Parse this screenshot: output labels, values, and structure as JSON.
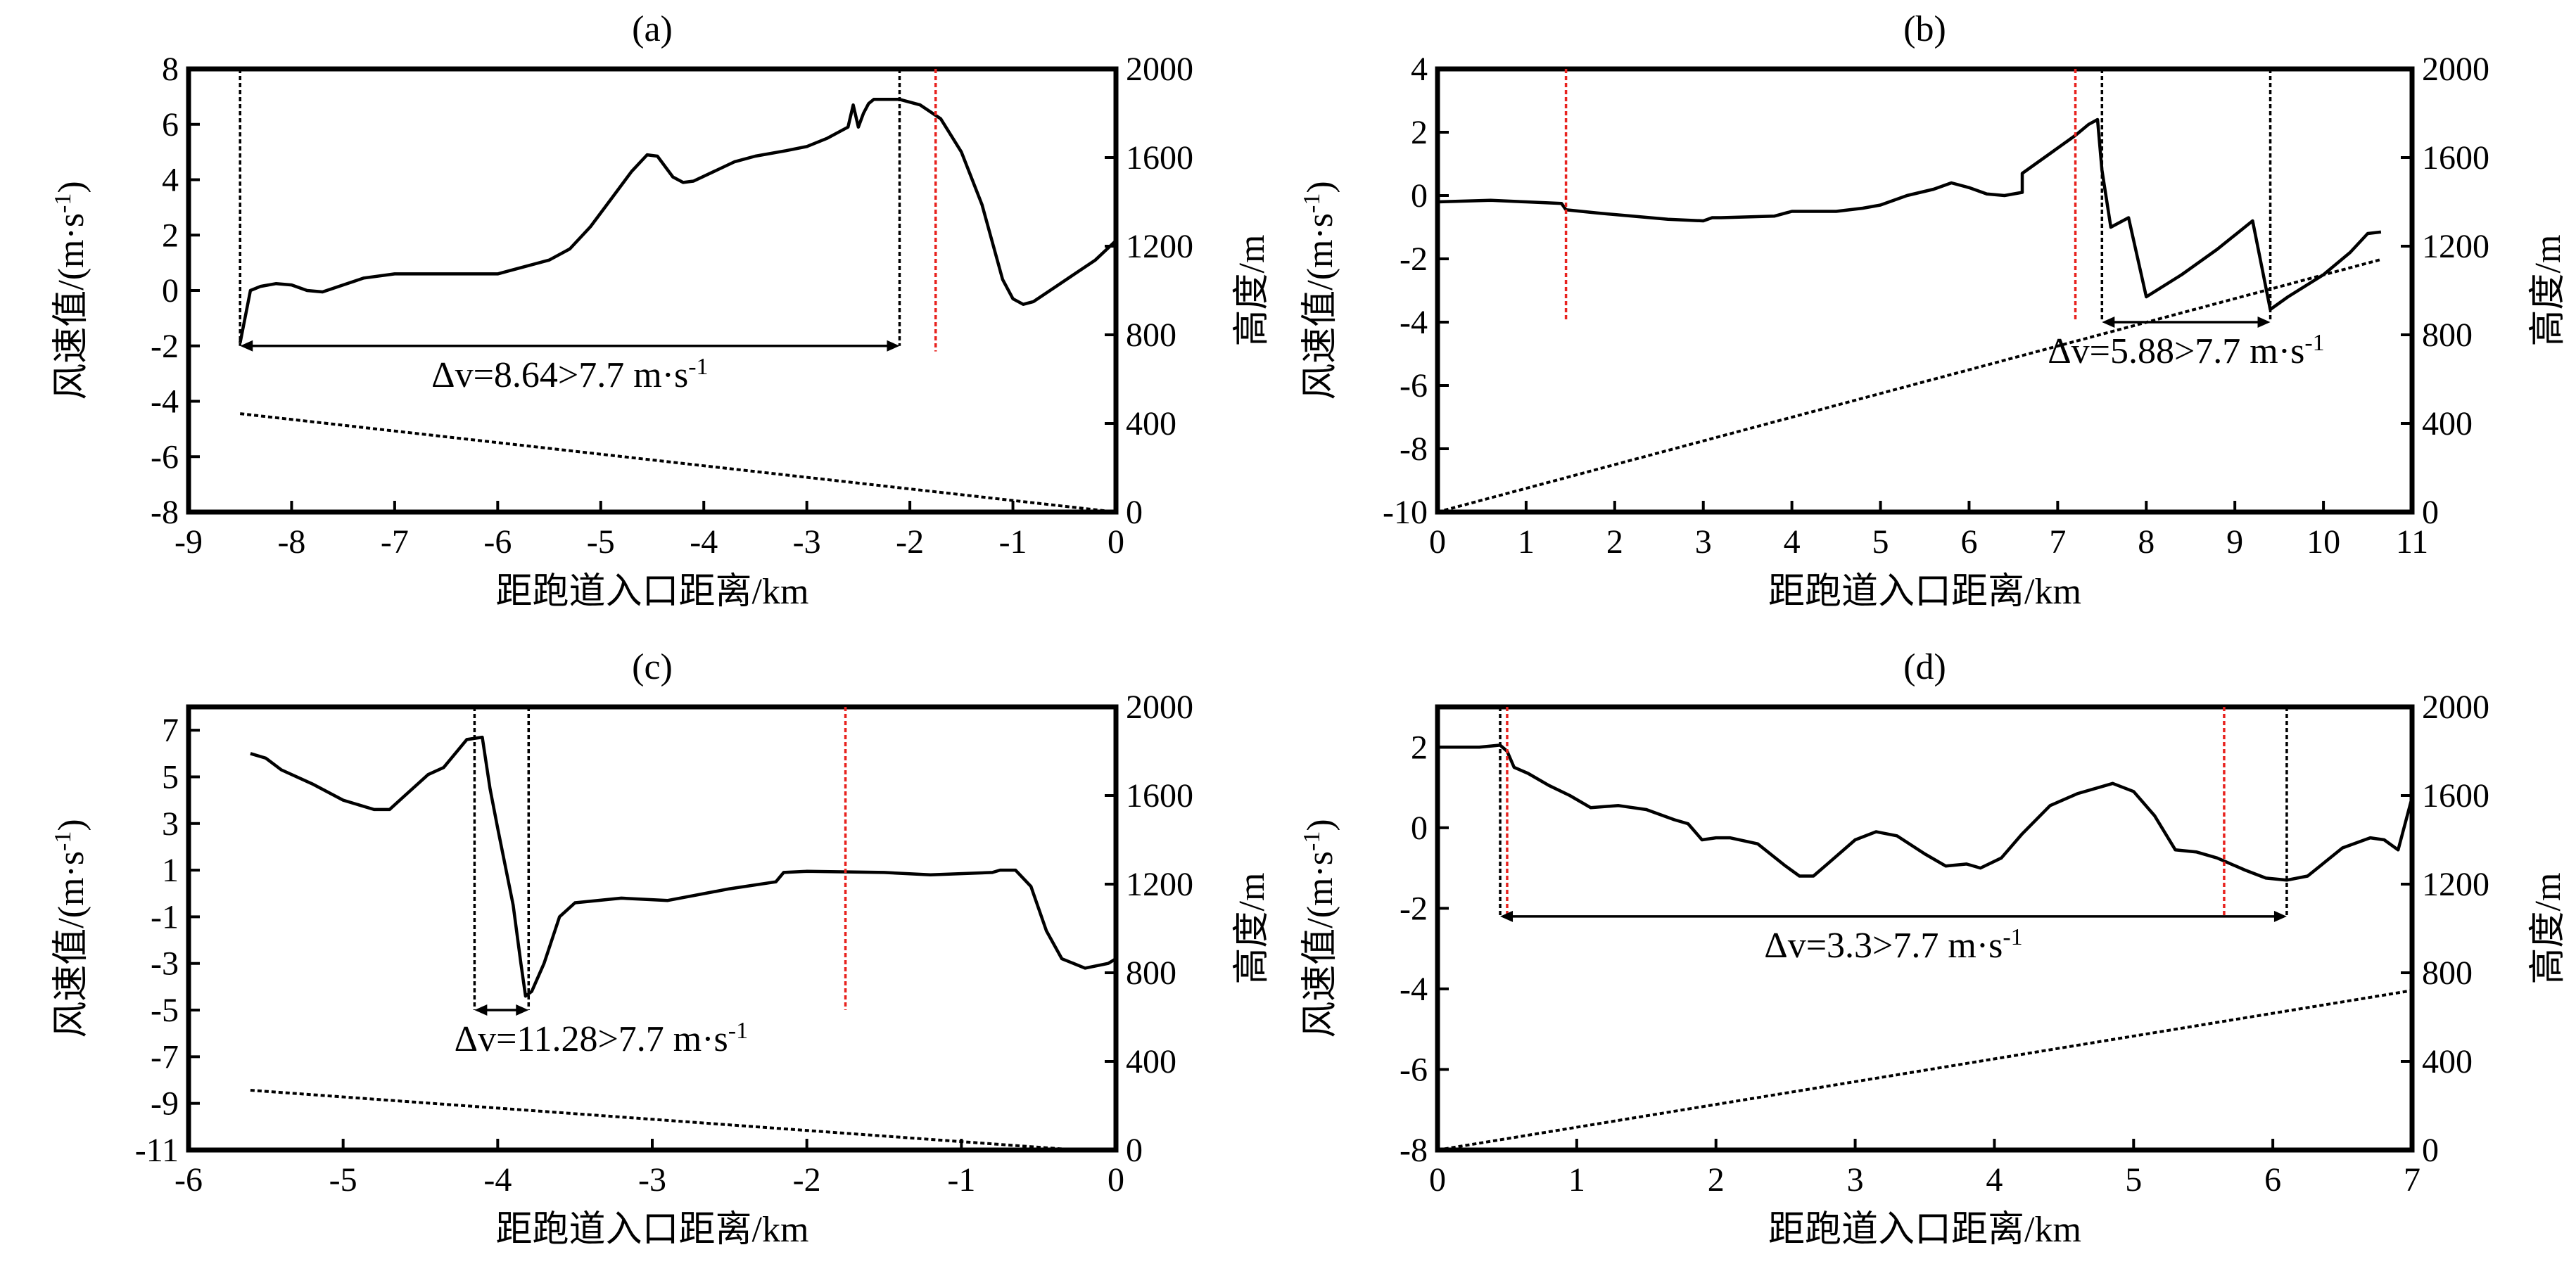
{
  "figure": {
    "x_label": "距跑道入口距离/km",
    "y_label_left": "风速值/(m·s",
    "y_label_left_exp": "-1",
    "y_label_left_close": ")",
    "y_label_right": "高度/m"
  },
  "colors": {
    "curve": "#000000",
    "marker_red": "#e8221e",
    "marker_black": "#000000"
  },
  "chart_data": [
    {
      "type": "line",
      "panel_label": "(a)",
      "xlim": [
        -9,
        0
      ],
      "ylim": [
        -8,
        8
      ],
      "y2lim": [
        0,
        2000
      ],
      "x_ticks": [
        -9,
        -8,
        -7,
        -6,
        -5,
        -4,
        -3,
        -2,
        -1,
        0
      ],
      "y_ticks": [
        -8,
        -6,
        -4,
        -2,
        0,
        2,
        4,
        6,
        8
      ],
      "y2_ticks": [
        0,
        400,
        800,
        1200,
        1600,
        2000
      ],
      "series": [
        {
          "axis": "left",
          "style": "solid",
          "x": [
            -8.5,
            -8.4,
            -8.3,
            -8.15,
            -8.0,
            -7.85,
            -7.7,
            -7.5,
            -7.3,
            -7.0,
            -6.5,
            -6.0,
            -5.9,
            -5.7,
            -5.5,
            -5.3,
            -5.1,
            -4.9,
            -4.7,
            -4.55,
            -4.45,
            -4.3,
            -4.2,
            -4.1,
            -3.9,
            -3.7,
            -3.5,
            -3.2,
            -3.0,
            -2.8,
            -2.6,
            -2.55,
            -2.5,
            -2.45,
            -2.4,
            -2.35,
            -2.3,
            -2.1,
            -1.9,
            -1.7,
            -1.5,
            -1.3,
            -1.1,
            -1.0,
            -0.9,
            -0.8,
            -0.6,
            -0.4,
            -0.2,
            0.0
          ],
          "y": [
            -1.9,
            0.0,
            0.15,
            0.25,
            0.2,
            0.0,
            -0.05,
            0.2,
            0.45,
            0.6,
            0.6,
            0.6,
            0.7,
            0.9,
            1.1,
            1.5,
            2.3,
            3.3,
            4.3,
            4.9,
            4.85,
            4.1,
            3.9,
            3.95,
            4.3,
            4.65,
            4.85,
            5.05,
            5.2,
            5.5,
            5.9,
            6.7,
            5.9,
            6.4,
            6.75,
            6.9,
            6.9,
            6.9,
            6.7,
            6.2,
            5.0,
            3.1,
            0.4,
            -0.3,
            -0.5,
            -0.4,
            0.1,
            0.6,
            1.1,
            1.8
          ]
        },
        {
          "axis": "right",
          "style": "dashed",
          "x": [
            -8.5,
            0.0
          ],
          "y": [
            444,
            0
          ]
        }
      ],
      "markers": [
        {
          "x": -8.5,
          "color": "black",
          "y_top": 8,
          "y_bottom": -2
        },
        {
          "x": -2.1,
          "color": "black",
          "y_top": 8,
          "y_bottom": -2
        },
        {
          "x": -1.75,
          "color": "red",
          "y_top": 8,
          "y_bottom": -2.2
        }
      ],
      "arrow": {
        "x1": -8.5,
        "x2": -2.1,
        "y": -2.0
      },
      "annotation": {
        "text": "Δv=8.64>7.7 m·s",
        "exp": "-1"
      }
    },
    {
      "type": "line",
      "panel_label": "(b)",
      "xlim": [
        0,
        11
      ],
      "ylim": [
        -10,
        4
      ],
      "y2lim": [
        0,
        2000
      ],
      "x_ticks": [
        0,
        1,
        2,
        3,
        4,
        5,
        6,
        7,
        8,
        9,
        10,
        11
      ],
      "y_ticks": [
        -10,
        -8,
        -6,
        -4,
        -2,
        0,
        2,
        4
      ],
      "y2_ticks": [
        0,
        400,
        800,
        1200,
        1600,
        2000
      ],
      "series": [
        {
          "axis": "left",
          "style": "solid",
          "x": [
            0.0,
            0.6,
            1.0,
            1.4,
            1.45,
            1.8,
            2.2,
            2.6,
            3.0,
            3.1,
            3.2,
            3.8,
            4.0,
            4.5,
            4.8,
            5.0,
            5.3,
            5.6,
            5.8,
            6.0,
            6.2,
            6.4,
            6.6,
            6.6,
            6.9,
            7.2,
            7.35,
            7.45,
            7.5,
            7.6,
            7.8,
            8.0,
            8.4,
            8.8,
            9.2,
            9.4,
            9.6,
            10.0,
            10.3,
            10.5,
            10.65
          ],
          "y": [
            -0.2,
            -0.15,
            -0.2,
            -0.25,
            -0.45,
            -0.55,
            -0.65,
            -0.75,
            -0.8,
            -0.7,
            -0.7,
            -0.65,
            -0.5,
            -0.5,
            -0.4,
            -0.3,
            0.0,
            0.2,
            0.4,
            0.25,
            0.05,
            0.0,
            0.1,
            0.7,
            1.3,
            1.9,
            2.25,
            2.4,
            0.8,
            -1.0,
            -0.7,
            -3.2,
            -2.5,
            -1.7,
            -0.8,
            -3.6,
            -3.2,
            -2.5,
            -1.8,
            -1.2,
            -1.15
          ]
        },
        {
          "axis": "right",
          "style": "dashed",
          "x": [
            0.0,
            10.65
          ],
          "y": [
            0,
            1140
          ]
        }
      ],
      "markers": [
        {
          "x": 1.45,
          "color": "red",
          "y_top": 4,
          "y_bottom": -4.0
        },
        {
          "x": 7.2,
          "color": "red",
          "y_top": 4,
          "y_bottom": -4.0
        },
        {
          "x": 7.5,
          "color": "black",
          "y_top": 4,
          "y_bottom": -4.0
        },
        {
          "x": 9.4,
          "color": "black",
          "y_top": 4,
          "y_bottom": -4.0
        }
      ],
      "arrow": {
        "x1": 7.5,
        "x2": 9.4,
        "y": -4.0
      },
      "annotation": {
        "text": "Δv=5.88>7.7 m·s",
        "exp": "-1"
      }
    },
    {
      "type": "line",
      "panel_label": "(c)",
      "xlim": [
        -6,
        0
      ],
      "ylim": [
        -11,
        8
      ],
      "y2lim": [
        0,
        2000
      ],
      "x_ticks": [
        -6,
        -5,
        -4,
        -3,
        -2,
        -1,
        0
      ],
      "y_ticks": [
        -11,
        -9,
        -7,
        -5,
        -3,
        -1,
        1,
        3,
        5,
        7
      ],
      "y2_ticks": [
        0,
        400,
        800,
        1200,
        1600,
        2000
      ],
      "series": [
        {
          "axis": "left",
          "style": "solid",
          "x": [
            -5.6,
            -5.5,
            -5.4,
            -5.2,
            -5.0,
            -4.8,
            -4.7,
            -4.6,
            -4.45,
            -4.35,
            -4.2,
            -4.1,
            -4.05,
            -4.0,
            -3.9,
            -3.85,
            -3.82,
            -3.78,
            -3.7,
            -3.6,
            -3.5,
            -3.2,
            -2.9,
            -2.5,
            -2.2,
            -2.15,
            -2.0,
            -1.5,
            -1.2,
            -0.8,
            -0.75,
            -0.65,
            -0.55,
            -0.45,
            -0.35,
            -0.2,
            -0.05,
            0.0
          ],
          "y": [
            6.0,
            5.8,
            5.3,
            4.7,
            4.0,
            3.6,
            3.6,
            4.2,
            5.1,
            5.4,
            6.6,
            6.7,
            4.5,
            2.8,
            -0.5,
            -3.0,
            -4.4,
            -4.2,
            -3.0,
            -1.0,
            -0.4,
            -0.2,
            -0.3,
            0.2,
            0.5,
            0.9,
            0.95,
            0.9,
            0.8,
            0.9,
            1.0,
            1.0,
            0.3,
            -1.6,
            -2.8,
            -3.2,
            -3.0,
            -2.8
          ]
        },
        {
          "axis": "right",
          "style": "dashed",
          "x": [
            -5.6,
            -0.25
          ],
          "y": [
            270,
            0
          ]
        }
      ],
      "markers": [
        {
          "x": -4.15,
          "color": "black",
          "y_top": 8,
          "y_bottom": -5.0
        },
        {
          "x": -3.8,
          "color": "black",
          "y_top": 8,
          "y_bottom": -5.0
        },
        {
          "x": -1.75,
          "color": "red",
          "y_top": 8,
          "y_bottom": -5.0
        }
      ],
      "arrow": {
        "x1": -4.15,
        "x2": -3.8,
        "y": -5.0
      },
      "annotation": {
        "text": "Δv=11.28>7.7 m·s",
        "exp": "-1"
      }
    },
    {
      "type": "line",
      "panel_label": "(d)",
      "xlim": [
        0,
        7
      ],
      "ylim": [
        -8,
        3
      ],
      "y2lim": [
        0,
        2000
      ],
      "x_ticks": [
        0,
        1,
        2,
        3,
        4,
        5,
        6,
        7
      ],
      "y_ticks": [
        -8,
        -6,
        -4,
        -2,
        0,
        2
      ],
      "y2_ticks": [
        0,
        400,
        800,
        1200,
        1600,
        2000
      ],
      "series": [
        {
          "axis": "left",
          "style": "solid",
          "x": [
            0.0,
            0.3,
            0.45,
            0.5,
            0.55,
            0.65,
            0.8,
            0.95,
            1.1,
            1.3,
            1.5,
            1.7,
            1.8,
            1.9,
            2.0,
            2.1,
            2.3,
            2.5,
            2.6,
            2.7,
            2.8,
            3.0,
            3.15,
            3.3,
            3.5,
            3.65,
            3.8,
            3.9,
            4.05,
            4.2,
            4.4,
            4.6,
            4.85,
            5.0,
            5.15,
            5.3,
            5.45,
            5.6,
            5.8,
            5.95,
            6.1,
            6.25,
            6.5,
            6.7,
            6.8,
            6.9,
            7.0
          ],
          "y": [
            2.0,
            2.0,
            2.05,
            1.9,
            1.5,
            1.35,
            1.05,
            0.8,
            0.5,
            0.55,
            0.45,
            0.2,
            0.1,
            -0.3,
            -0.25,
            -0.25,
            -0.4,
            -0.95,
            -1.2,
            -1.2,
            -0.9,
            -0.3,
            -0.1,
            -0.2,
            -0.65,
            -0.95,
            -0.9,
            -1.0,
            -0.75,
            -0.15,
            0.55,
            0.85,
            1.1,
            0.9,
            0.3,
            -0.55,
            -0.6,
            -0.75,
            -1.05,
            -1.25,
            -1.3,
            -1.2,
            -0.5,
            -0.25,
            -0.3,
            -0.55,
            0.75
          ]
        },
        {
          "axis": "right",
          "style": "dashed",
          "x": [
            0.0,
            7.0
          ],
          "y": [
            0,
            720
          ]
        }
      ],
      "markers": [
        {
          "x": 0.45,
          "color": "black",
          "y_top": 3,
          "y_bottom": -2.2
        },
        {
          "x": 0.5,
          "color": "red",
          "y_top": 3,
          "y_bottom": -2.2
        },
        {
          "x": 5.65,
          "color": "red",
          "y_top": 3,
          "y_bottom": -2.2
        },
        {
          "x": 6.1,
          "color": "black",
          "y_top": 3,
          "y_bottom": -2.2
        }
      ],
      "arrow": {
        "x1": 0.45,
        "x2": 6.1,
        "y": -2.2
      },
      "annotation": {
        "text": "Δv=3.3>7.7 m·s",
        "exp": "-1"
      }
    }
  ]
}
